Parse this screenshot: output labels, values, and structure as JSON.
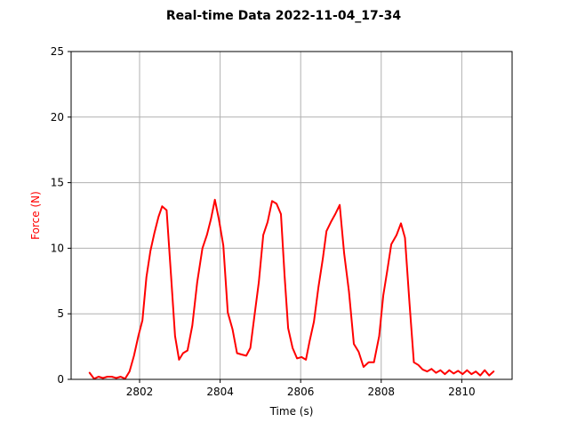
{
  "chart_data": {
    "type": "line",
    "title": "Real-time Data 2022-11-04_17-34",
    "xlabel": "Time (s)",
    "ylabel": "Force (N)",
    "xlim": [
      2800.3,
      2811.25
    ],
    "ylim": [
      0,
      25
    ],
    "x_ticks": [
      2802,
      2804,
      2806,
      2808,
      2810
    ],
    "y_ticks": [
      0,
      5,
      10,
      15,
      20,
      25
    ],
    "grid": true,
    "series": [
      {
        "color": "#ff0000",
        "x": [
          2800.76,
          2800.87,
          2800.98,
          2801.09,
          2801.2,
          2801.31,
          2801.42,
          2801.53,
          2801.64,
          2801.75,
          2801.86,
          2801.97,
          2802.07,
          2802.17,
          2802.27,
          2802.37,
          2802.47,
          2802.56,
          2802.67,
          2802.78,
          2802.88,
          2802.98,
          2803.08,
          2803.19,
          2803.31,
          2803.43,
          2803.56,
          2803.67,
          2803.77,
          2803.87,
          2803.97,
          2804.08,
          2804.19,
          2804.31,
          2804.42,
          2804.53,
          2804.65,
          2804.75,
          2804.85,
          2804.96,
          2805.07,
          2805.18,
          2805.29,
          2805.4,
          2805.51,
          2805.6,
          2805.69,
          2805.8,
          2805.91,
          2806.02,
          2806.13,
          2806.22,
          2806.33,
          2806.44,
          2806.55,
          2806.64,
          2806.75,
          2806.86,
          2806.97,
          2807.08,
          2807.2,
          2807.32,
          2807.44,
          2807.56,
          2807.69,
          2807.82,
          2807.95,
          2808.05,
          2808.15,
          2808.25,
          2808.38,
          2808.49,
          2808.59,
          2808.7,
          2808.81,
          2808.92,
          2809.03,
          2809.14,
          2809.25,
          2809.36,
          2809.47,
          2809.58,
          2809.69,
          2809.8,
          2809.91,
          2810.02,
          2810.13,
          2810.24,
          2810.35,
          2810.46,
          2810.57,
          2810.68,
          2810.79
        ],
        "y": [
          0.5,
          0.05,
          0.2,
          0.1,
          0.2,
          0.2,
          0.1,
          0.2,
          0.05,
          0.6,
          1.8,
          3.3,
          4.5,
          7.8,
          9.8,
          11.2,
          12.4,
          13.2,
          12.9,
          8.0,
          3.3,
          1.5,
          2.0,
          2.2,
          4.1,
          7.4,
          10.0,
          11.0,
          12.2,
          13.7,
          12.2,
          10.2,
          5.1,
          3.8,
          2.0,
          1.9,
          1.8,
          2.4,
          4.8,
          7.4,
          11.0,
          12.0,
          13.6,
          13.4,
          12.6,
          7.9,
          3.9,
          2.4,
          1.6,
          1.7,
          1.5,
          2.9,
          4.4,
          7.0,
          9.2,
          11.3,
          12.0,
          12.6,
          13.3,
          9.6,
          6.7,
          2.7,
          2.1,
          0.95,
          1.3,
          1.3,
          3.3,
          6.4,
          8.3,
          10.3,
          11.0,
          11.9,
          10.8,
          5.9,
          1.3,
          1.1,
          0.75,
          0.6,
          0.8,
          0.5,
          0.7,
          0.4,
          0.7,
          0.45,
          0.65,
          0.4,
          0.7,
          0.4,
          0.6,
          0.3,
          0.7,
          0.3,
          0.6
        ]
      }
    ]
  }
}
